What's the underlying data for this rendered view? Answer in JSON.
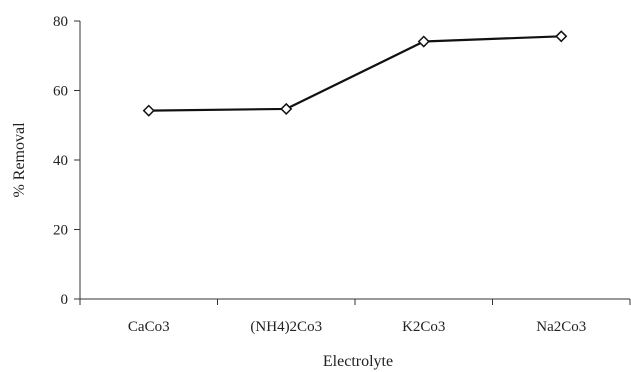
{
  "chart_data": {
    "type": "line",
    "categories": [
      "CaCo3",
      "(NH4)2Co3",
      "K2Co3",
      "Na2Co3"
    ],
    "series": [
      {
        "values": [
          54.2,
          54.7,
          74.1,
          75.6
        ]
      }
    ],
    "xlabel": "Electrolyte",
    "ylabel": "% Removal",
    "ylim": [
      0,
      80
    ],
    "yticks": [
      0,
      20,
      40,
      60,
      80
    ],
    "marker": "diamond",
    "grid": false,
    "line_color": "#111111"
  }
}
